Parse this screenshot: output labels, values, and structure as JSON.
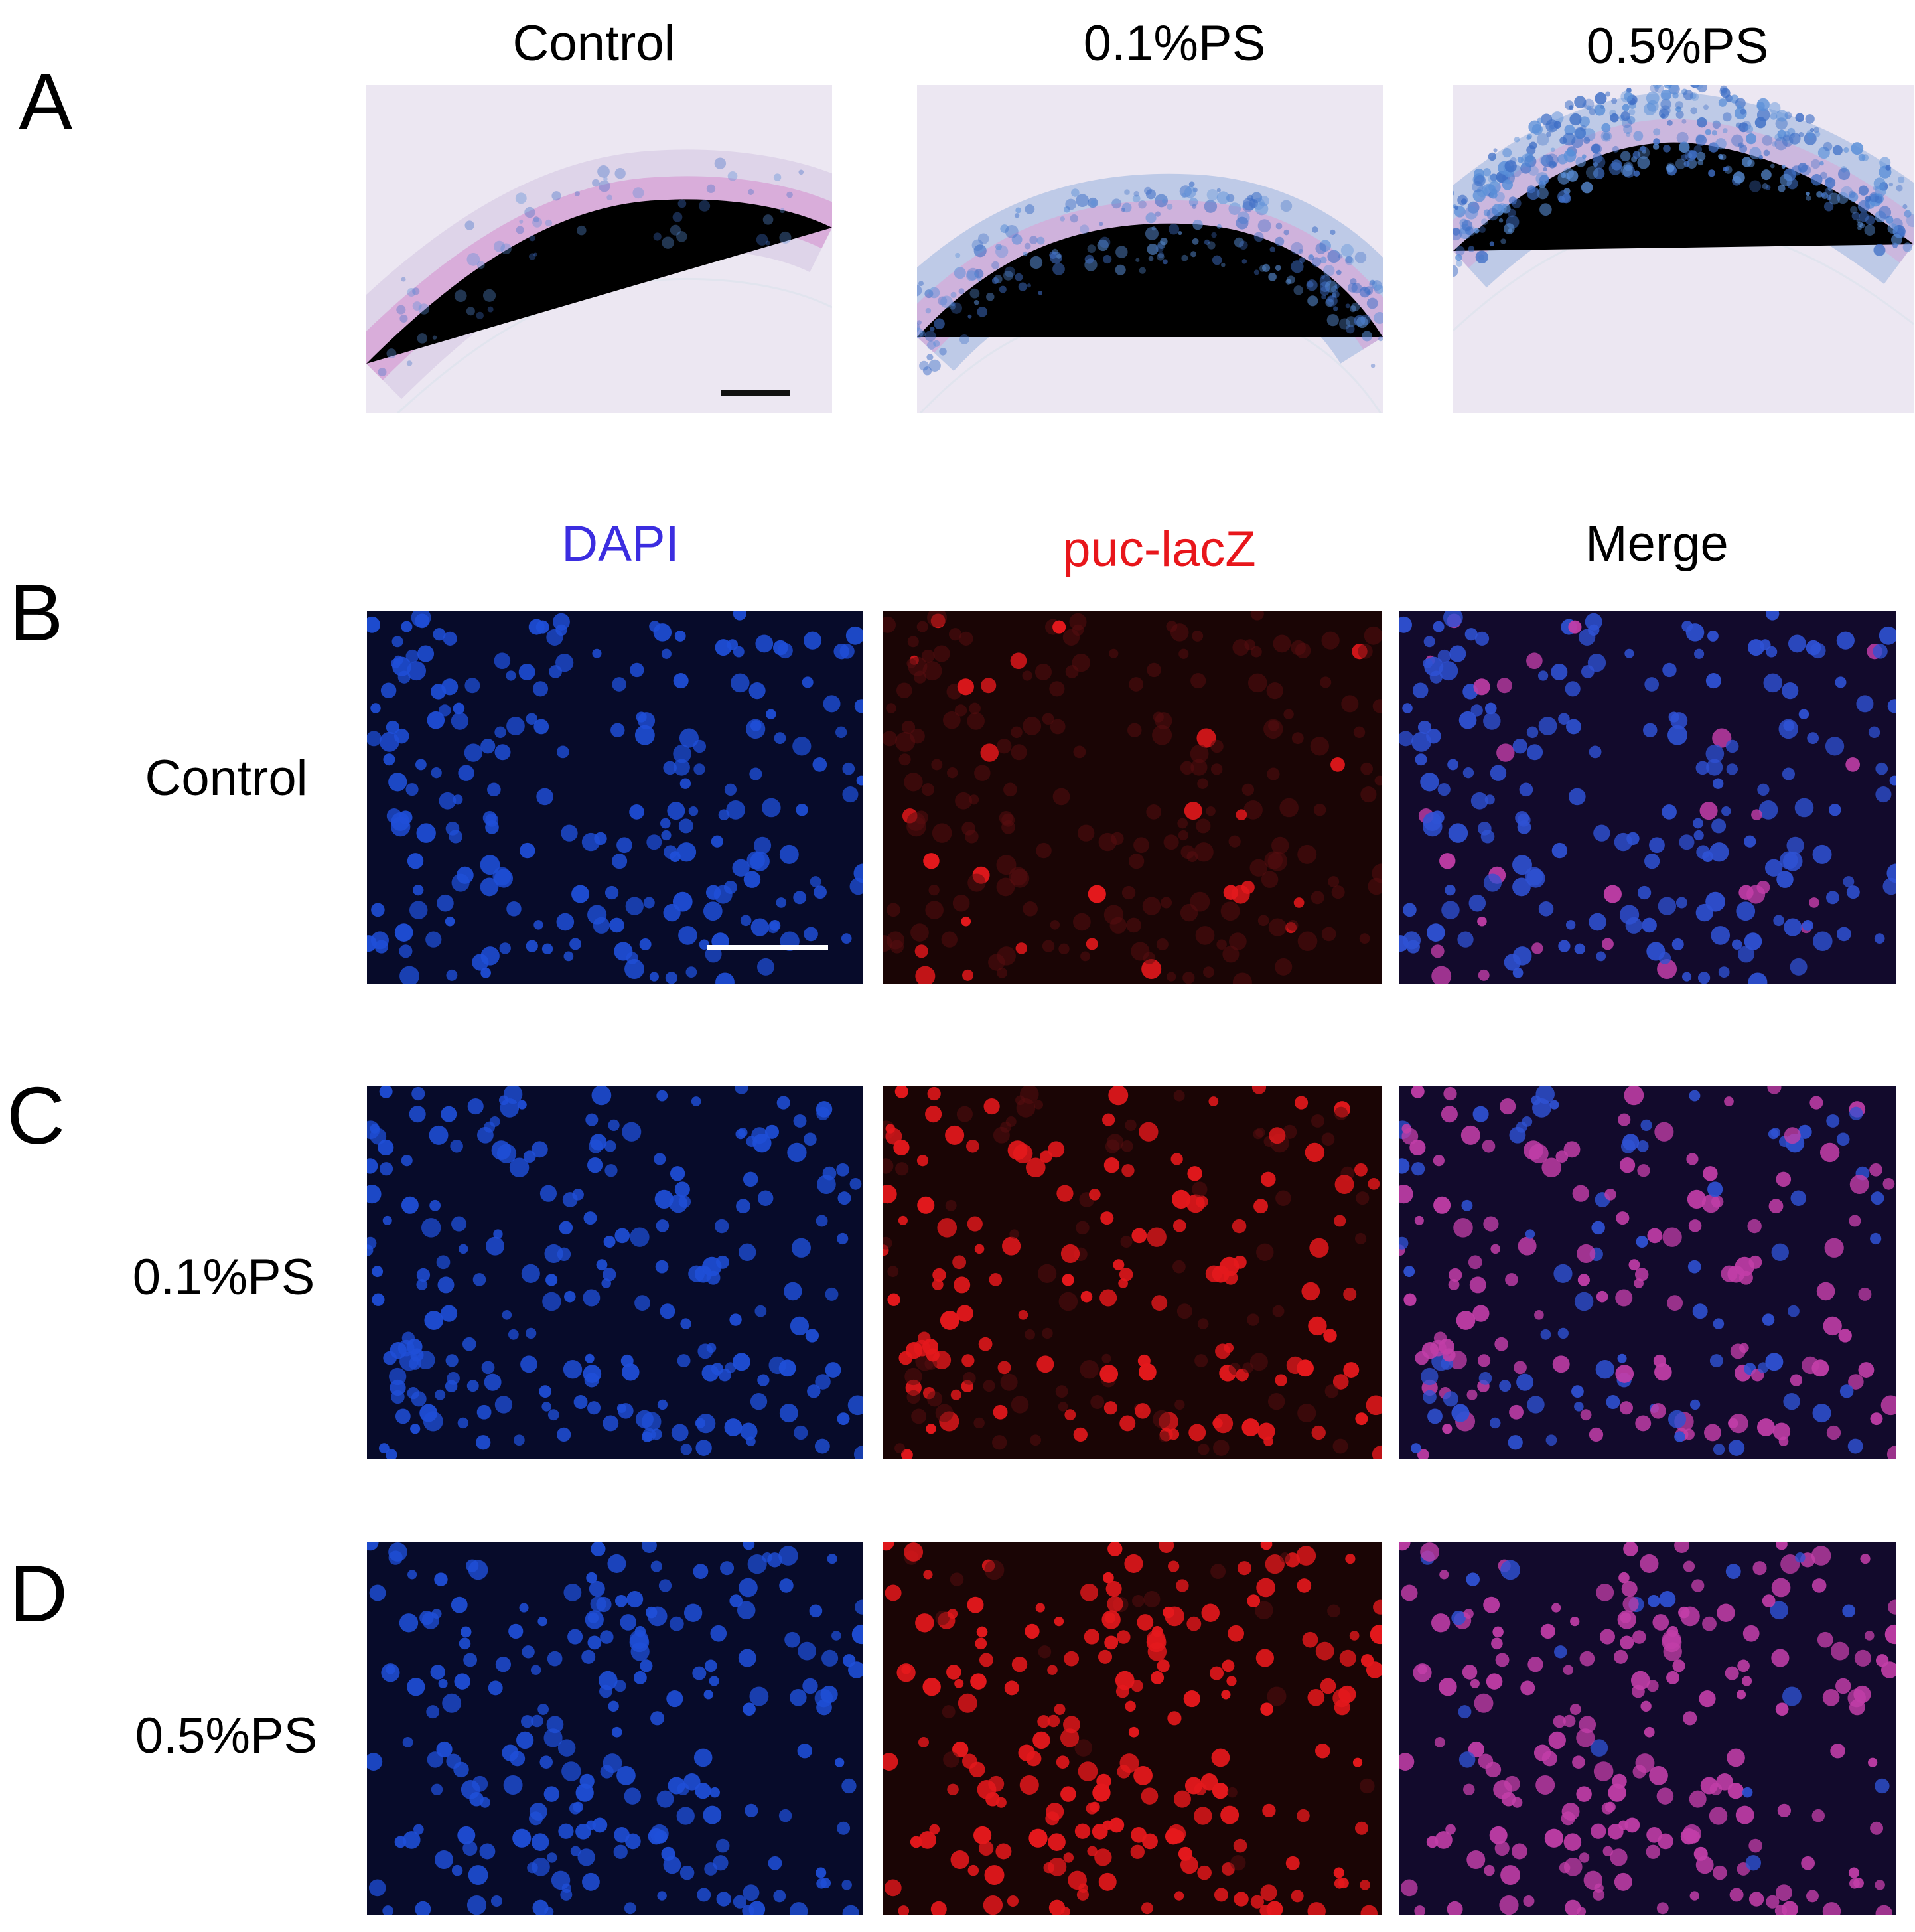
{
  "figure": {
    "panel_letters": [
      "A",
      "B",
      "C",
      "D"
    ],
    "row_a": {
      "columns": [
        "Control",
        "0.1%PS",
        "0.5%PS"
      ],
      "blue_stain_level": [
        0.05,
        0.45,
        0.85
      ]
    },
    "fluorescence": {
      "channel_headers": [
        {
          "label": "DAPI",
          "color": "#3b2de0"
        },
        {
          "label": "puc-lacZ",
          "color": "#e8161b"
        },
        {
          "label": "Merge",
          "color": "#000000"
        }
      ],
      "rows": [
        {
          "label": "Control",
          "red_intensity": 0.12
        },
        {
          "label": "0.1%PS",
          "red_intensity": 0.55
        },
        {
          "label": "0.5%PS",
          "red_intensity": 0.9
        }
      ]
    }
  }
}
